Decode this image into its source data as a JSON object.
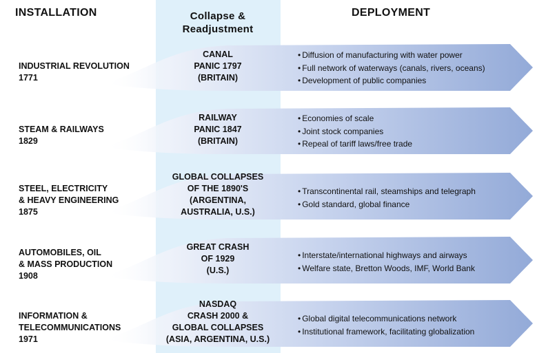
{
  "headers": {
    "installation": "INSTALLATION",
    "collapse": "Collapse &",
    "readjustment": "Readjustment",
    "deployment": "DEPLOYMENT"
  },
  "colors": {
    "collapse_band": "#dff0fa",
    "wave_light": "#eef2fa",
    "wave_dark": "#93aad8"
  },
  "revolutions": [
    {
      "name": [
        "INDUSTRIAL REVOLUTION"
      ],
      "year": "1771",
      "collapse": [
        "CANAL",
        "PANIC 1797",
        "(BRITAIN)"
      ],
      "deployment": [
        "Diffusion of manufacturing with water power",
        "Full network of waterways (canals, rivers, oceans)",
        "Development of public companies"
      ]
    },
    {
      "name": [
        "STEAM & RAILWAYS"
      ],
      "year": "1829",
      "collapse": [
        "RAILWAY",
        "PANIC 1847",
        "(BRITAIN)"
      ],
      "deployment": [
        "Economies of scale",
        "Joint stock companies",
        "Repeal of tariff laws/free trade"
      ]
    },
    {
      "name": [
        "STEEL, ELECTRICITY",
        "& HEAVY ENGINEERING"
      ],
      "year": "1875",
      "collapse": [
        "GLOBAL COLLAPSES",
        "OF THE 1890'S",
        "(ARGENTINA,",
        "AUSTRALIA, U.S.)"
      ],
      "deployment": [
        "Transcontinental rail, steamships and telegraph",
        "Gold standard, global finance"
      ]
    },
    {
      "name": [
        "AUTOMOBILES, OIL",
        "& MASS PRODUCTION"
      ],
      "year": "1908",
      "collapse": [
        "GREAT CRASH",
        "OF 1929",
        "(U.S.)"
      ],
      "deployment": [
        "Interstate/international highways and airways",
        "Welfare state, Bretton Woods, IMF, World Bank"
      ]
    },
    {
      "name": [
        "INFORMATION &",
        "TELECOMMUNICATIONS"
      ],
      "year": "1971",
      "collapse": [
        "NASDAQ",
        "CRASH 2000 &",
        "GLOBAL COLLAPSES",
        "(ASIA, ARGENTINA, U.S.)"
      ],
      "deployment": [
        "Global digital telecommunications network",
        "Institutional framework, facilitating globalization"
      ]
    }
  ]
}
